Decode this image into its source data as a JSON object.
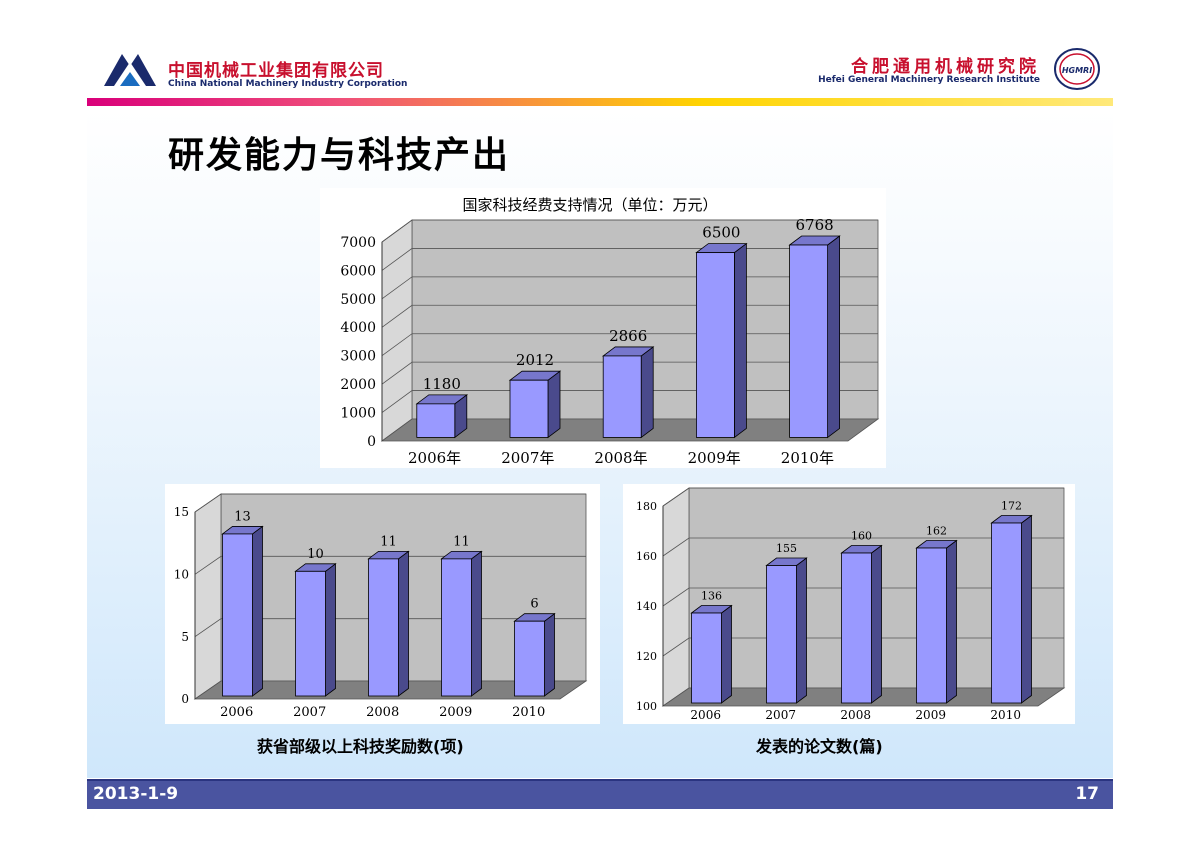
{
  "header": {
    "corp_cn": "中国机械工业集团有限公司",
    "corp_en": "China National Machinery Industry Corporation",
    "inst_cn": "合肥通用机械研究院",
    "inst_en": "Hefei General Machinery Research Institute",
    "inst_logo_text": "HGMRI"
  },
  "slide_title": "研发能力与科技产出",
  "footer": {
    "date": "2013-1-9",
    "page": "17"
  },
  "colors": {
    "bar_front": "#9999ff",
    "bar_side": "#4a4a8c",
    "bar_top": "#7777cc",
    "wall": "#c0c0c0",
    "floor": "#808080",
    "footer": "#4a54a0"
  },
  "chart_data": [
    {
      "type": "bar",
      "title": "国家科技经费支持情况（单位：万元）",
      "categories": [
        "2006年",
        "2007年",
        "2008年",
        "2009年",
        "2010年"
      ],
      "values": [
        1180,
        2012,
        2866,
        6500,
        6768
      ],
      "ylim": [
        0,
        7000
      ],
      "yticks": [
        0,
        1000,
        2000,
        3000,
        4000,
        5000,
        6000,
        7000
      ],
      "grid": true
    },
    {
      "type": "bar",
      "caption": "获省部级以上科技奖励数(项)",
      "categories": [
        "2006",
        "2007",
        "2008",
        "2009",
        "2010"
      ],
      "values": [
        13,
        10,
        11,
        11,
        6
      ],
      "ylim": [
        0,
        15
      ],
      "yticks": [
        0,
        5,
        10,
        15
      ],
      "grid": true
    },
    {
      "type": "bar",
      "caption": "发表的论文数(篇)",
      "categories": [
        "2006",
        "2007",
        "2008",
        "2009",
        "2010"
      ],
      "values": [
        136,
        155,
        160,
        162,
        172
      ],
      "ylim": [
        100,
        180
      ],
      "yticks": [
        100,
        120,
        140,
        160,
        180
      ],
      "grid": true
    }
  ]
}
